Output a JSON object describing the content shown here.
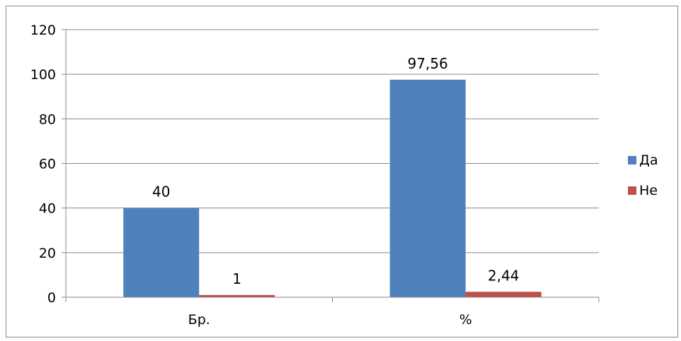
{
  "chart_data": {
    "type": "bar",
    "title": "",
    "xlabel": "",
    "ylabel": "",
    "categories": [
      "Бр.",
      "%"
    ],
    "series": [
      {
        "name": "Да",
        "values": [
          40,
          97.56
        ],
        "labels": [
          "40",
          "97,56"
        ],
        "color": "#4F81BD"
      },
      {
        "name": "Не",
        "values": [
          1,
          2.44
        ],
        "labels": [
          "1",
          "2,44"
        ],
        "color": "#C0504D"
      }
    ],
    "ylim": [
      0,
      120
    ],
    "yticks": [
      0,
      20,
      40,
      60,
      80,
      100,
      120
    ],
    "grid": true,
    "legend_position": "right"
  }
}
